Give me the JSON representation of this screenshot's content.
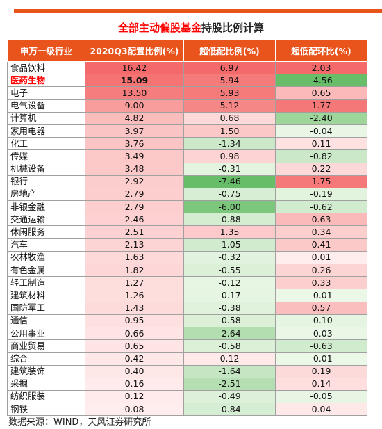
{
  "title": {
    "part1": "全部主动偏股基金",
    "part2": "持股比例计算"
  },
  "headers": [
    "申万一级行业",
    "2020Q3配置比例(%)",
    "超低配比例(%)",
    "超低配环比(%)"
  ],
  "rows": [
    [
      "食品饮料",
      "16.42",
      "6.97",
      "2.03"
    ],
    [
      "医药生物",
      "15.09",
      "5.94",
      "-4.56"
    ],
    [
      "电子",
      "13.50",
      "5.93",
      "0.65"
    ],
    [
      "电气设备",
      "9.00",
      "5.12",
      "1.77"
    ],
    [
      "计算机",
      "4.82",
      "0.68",
      "-2.40"
    ],
    [
      "家用电器",
      "3.97",
      "1.50",
      "-0.04"
    ],
    [
      "化工",
      "3.76",
      "-1.34",
      "0.11"
    ],
    [
      "传媒",
      "3.49",
      "0.98",
      "-0.82"
    ],
    [
      "机械设备",
      "3.48",
      "-0.31",
      "0.22"
    ],
    [
      "银行",
      "2.92",
      "-7.46",
      "1.75"
    ],
    [
      "房地产",
      "2.79",
      "-0.75",
      "-0.19"
    ],
    [
      "非银金融",
      "2.79",
      "-6.00",
      "-0.62"
    ],
    [
      "交通运输",
      "2.46",
      "-0.88",
      "0.63"
    ],
    [
      "休闲服务",
      "2.51",
      "1.35",
      "0.34"
    ],
    [
      "汽车",
      "2.13",
      "-1.05",
      "0.41"
    ],
    [
      "农林牧渔",
      "1.63",
      "-0.32",
      "0.01"
    ],
    [
      "有色金属",
      "1.82",
      "-0.55",
      "0.26"
    ],
    [
      "轻工制造",
      "1.27",
      "-0.12",
      "0.33"
    ],
    [
      "建筑材料",
      "1.26",
      "-0.17",
      "-0.01"
    ],
    [
      "国防军工",
      "1.43",
      "-0.38",
      "0.57"
    ],
    [
      "通信",
      "0.95",
      "-0.58",
      "-0.10"
    ],
    [
      "公用事业",
      "0.66",
      "-2.64",
      "-0.03"
    ],
    [
      "商业贸易",
      "0.65",
      "-0.58",
      "-0.63"
    ],
    [
      "综合",
      "0.42",
      "0.12",
      "-0.01"
    ],
    [
      "建筑装饰",
      "0.40",
      "-1.64",
      "0.19"
    ],
    [
      "采掘",
      "0.16",
      "-2.51",
      "0.14"
    ],
    [
      "纺织服装",
      "0.12",
      "-0.49",
      "-0.05"
    ],
    [
      "钢铁",
      "0.08",
      "-0.84",
      "0.04"
    ]
  ],
  "highlight_industry": "医药生物",
  "source": "数据来源：WIND，天风证券研究所",
  "colors": {
    "accent": "#e8541c",
    "title_red": "#ff0000",
    "positive_scale": "#f46e6e",
    "negative_scale": "#6bbf6b"
  }
}
